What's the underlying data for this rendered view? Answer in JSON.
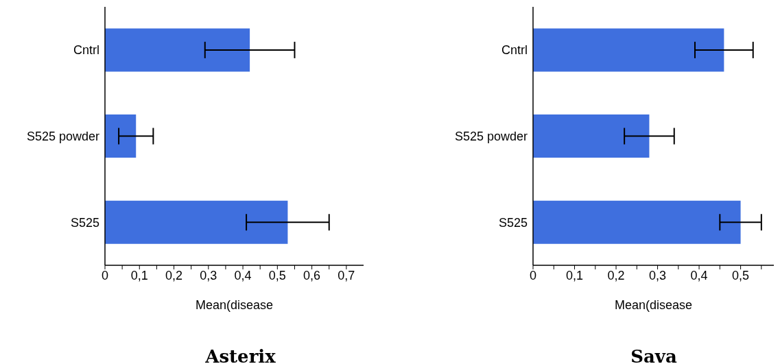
{
  "chart_data": [
    {
      "type": "bar",
      "orientation": "horizontal",
      "title": "Asterix",
      "xlabel": "Mean(disease",
      "categories": [
        "Cntrl",
        "S525 powder",
        "S525"
      ],
      "values": [
        0.42,
        0.09,
        0.53
      ],
      "errors": [
        0.13,
        0.05,
        0.12
      ],
      "color": "#3f6fde",
      "xlim": [
        0,
        0.75
      ],
      "xticks": [
        0,
        {
          "value": 0.05,
          "label": null
        },
        {
          "value": 0.1,
          "label": "0,1"
        },
        {
          "value": 0.15,
          "label": null
        },
        {
          "value": 0.2,
          "label": "0,2"
        },
        {
          "value": 0.25,
          "label": null
        },
        {
          "value": 0.3,
          "label": "0,3"
        },
        {
          "value": 0.35,
          "label": null
        },
        {
          "value": 0.4,
          "label": "0,4"
        },
        {
          "value": 0.45,
          "label": null
        },
        {
          "value": 0.5,
          "label": "0,5"
        },
        {
          "value": 0.55,
          "label": null
        },
        {
          "value": 0.6,
          "label": "0,6"
        },
        {
          "value": 0.65,
          "label": null
        },
        {
          "value": 0.7,
          "label": "0,7"
        }
      ]
    },
    {
      "type": "bar",
      "orientation": "horizontal",
      "title": "Sava",
      "xlabel": "Mean(disease",
      "categories": [
        "Cntrl",
        "S525 powder",
        "S525"
      ],
      "values": [
        0.46,
        0.28,
        0.5
      ],
      "errors": [
        0.07,
        0.06,
        0.05
      ],
      "color": "#3f6fde",
      "xlim": [
        0,
        0.58
      ],
      "xticks": [
        0,
        {
          "value": 0.05,
          "label": null
        },
        {
          "value": 0.1,
          "label": "0,1"
        },
        {
          "value": 0.15,
          "label": null
        },
        {
          "value": 0.2,
          "label": "0,2"
        },
        {
          "value": 0.25,
          "label": null
        },
        {
          "value": 0.3,
          "label": "0,3"
        },
        {
          "value": 0.35,
          "label": null
        },
        {
          "value": 0.4,
          "label": "0,4"
        },
        {
          "value": 0.45,
          "label": null
        },
        {
          "value": 0.5,
          "label": "0,5"
        },
        {
          "value": 0.55,
          "label": null
        }
      ]
    }
  ]
}
